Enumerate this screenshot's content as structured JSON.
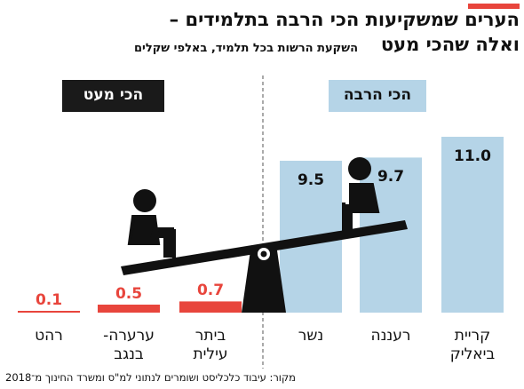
{
  "chart_data": {
    "type": "bar",
    "title": "הערים שמשקיעות הכי הרבה בתלמידים –",
    "title_line2": "ואלה שהכי מעט",
    "subtitle": "השקעת הרשות בכל תלמיד, באלפי שקלים",
    "groups": [
      {
        "label": "הכי מעט",
        "color": "#1a1a1a"
      },
      {
        "label": "הכי הרבה",
        "color": "#b5d4e7"
      }
    ],
    "categories": [
      "רהט",
      "ערערה-\nבנגב",
      "ביתר\nעילית",
      "נשר",
      "רעננה",
      "קריית\nביאליק"
    ],
    "values": [
      0.1,
      0.5,
      0.7,
      9.5,
      9.7,
      11.0
    ],
    "value_labels": [
      "0.1",
      "0.5",
      "0.7",
      "9.5",
      "9.7",
      "11.0"
    ],
    "colors": [
      "#e8453c",
      "#e8453c",
      "#e8453c",
      "#b5d4e7",
      "#b5d4e7",
      "#b5d4e7"
    ],
    "source": "מקור: עיבוד כלכליסט ושומרים לנתוני למ\"ס ומשרד החינוך מ־2018"
  }
}
